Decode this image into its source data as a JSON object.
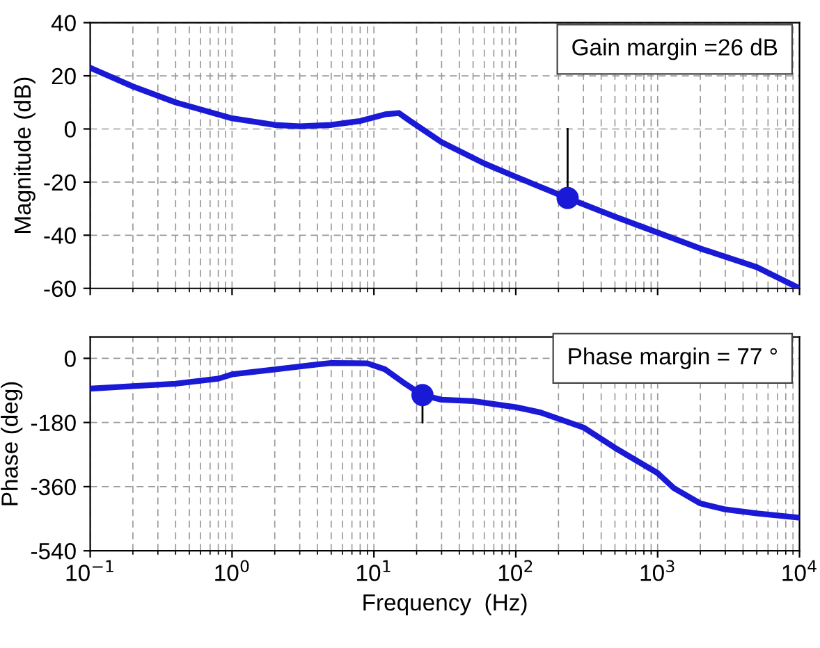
{
  "chart_data": [
    {
      "type": "line",
      "ylabel": "Magnitude (dB)",
      "log": "x",
      "grid": true,
      "tick_labels": "y",
      "xlim": [
        0.1,
        10000
      ],
      "ylim": [
        -60,
        40
      ],
      "yticks": [
        -60,
        -40,
        -20,
        0,
        20,
        40
      ],
      "annotations": [
        "Gain margin =26 dB"
      ],
      "series": [
        {
          "color": "#1a1ad6",
          "x": [
            0.1,
            0.2,
            0.4,
            1,
            2,
            3,
            5,
            8,
            12,
            15,
            18,
            30,
            60,
            100,
            232,
            500,
            1000,
            2000,
            5000,
            10000
          ],
          "values": [
            23,
            16,
            10,
            4,
            1.5,
            1,
            1.5,
            3,
            5.5,
            6,
            3,
            -5,
            -13,
            -18,
            -26,
            -33,
            -39,
            -45,
            -52,
            -60
          ]
        },
        {
          "type": "line",
          "color": "#000000",
          "x": [
            232,
            232
          ],
          "values": [
            0,
            -26
          ]
        },
        {
          "type": "scatter",
          "marker": "circle",
          "color": "#1a1ad6",
          "x": [
            232
          ],
          "values": [
            -26
          ]
        }
      ]
    },
    {
      "type": "line",
      "ylabel": "Phase (deg)",
      "xlabel": "Frequency  (Hz)",
      "log": "x",
      "grid": true,
      "xlim": [
        0.1,
        10000
      ],
      "xticks": [
        {
          "value": 0.1,
          "label": "10$^{−1}$"
        },
        {
          "value": 1,
          "label": "10$^{0}$"
        },
        {
          "value": 10,
          "label": "10$^{1}$"
        },
        {
          "value": 100,
          "label": "10$^{2}$"
        },
        {
          "value": 1000,
          "label": "10$^{3}$"
        },
        {
          "value": 10000,
          "label": "10$^{4}$"
        }
      ],
      "ylim": [
        -540,
        60
      ],
      "yticks": [
        -540,
        -360,
        -180,
        0
      ],
      "annotations": [
        "Phase margin = 77 °"
      ],
      "series": [
        {
          "color": "#1a1ad6",
          "x": [
            0.1,
            0.2,
            0.4,
            0.8,
            1,
            2,
            4,
            5,
            9,
            12,
            16,
            22,
            30,
            50,
            100,
            150,
            300,
            500,
            1000,
            1300,
            2000,
            3000,
            5000,
            10000
          ],
          "values": [
            -85,
            -78,
            -71,
            -57,
            -45,
            -31,
            -17,
            -13,
            -14,
            -31,
            -67,
            -103,
            -116,
            -120,
            -137,
            -152,
            -194,
            -251,
            -322,
            -364,
            -407,
            -424,
            -435,
            -447
          ]
        },
        {
          "type": "line",
          "color": "#000000",
          "x": [
            22,
            22
          ],
          "values": [
            -180,
            -103
          ]
        },
        {
          "type": "scatter",
          "marker": "circle",
          "color": "#1a1ad6",
          "x": [
            22
          ],
          "values": [
            -103
          ]
        }
      ]
    }
  ]
}
